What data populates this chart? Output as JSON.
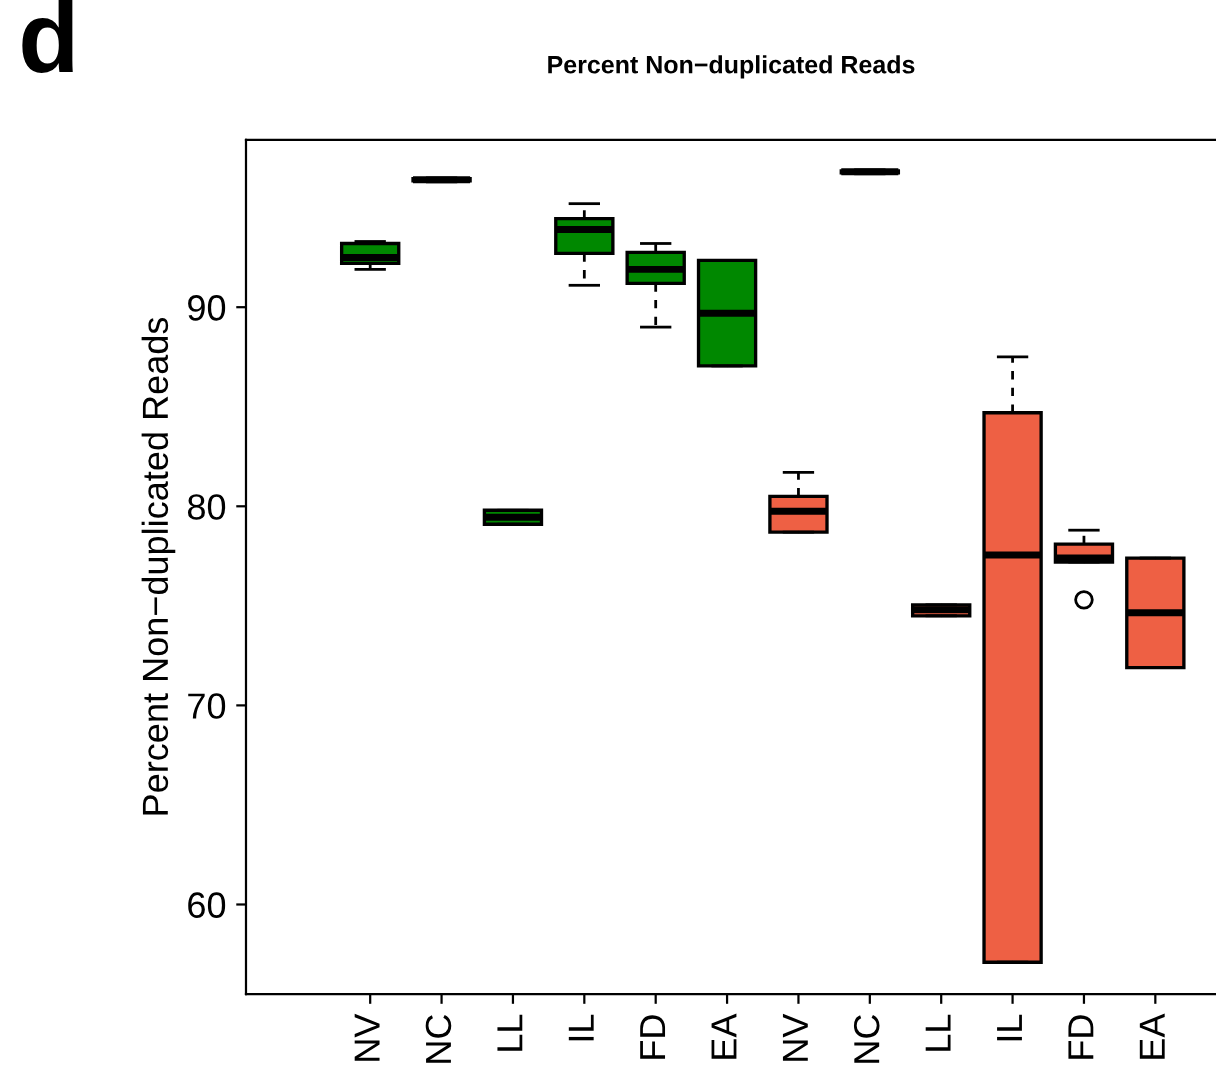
{
  "chart_data": {
    "type": "box",
    "title": "Percent Non−duplicated Reads",
    "ylabel": "Percent Non−duplicated Reads",
    "annotations": [
      "d"
    ],
    "categories": [
      "NV",
      "NC",
      "LL",
      "IL",
      "FD",
      "EA",
      "NV",
      "NC",
      "LL",
      "IL",
      "FD",
      "EA"
    ],
    "colors": [
      "#008800",
      "#008800",
      "#008800",
      "#008800",
      "#008800",
      "#008800",
      "#ee6044",
      "#ee6044",
      "#ee6044",
      "#ee6044",
      "#ee6044",
      "#ee6044"
    ],
    "boxes": [
      {
        "low": 91.9,
        "q1": 92.2,
        "median": 92.5,
        "q3": 93.2,
        "high": 93.3
      },
      {
        "low": 96.3,
        "q1": 96.35,
        "median": 96.4,
        "q3": 96.45,
        "high": 96.5
      },
      {
        "low": 79.1,
        "q1": 79.1,
        "median": 79.45,
        "q3": 79.8,
        "high": 79.8
      },
      {
        "low": 91.1,
        "q1": 92.7,
        "median": 93.9,
        "q3": 94.45,
        "high": 95.2
      },
      {
        "low": 89.0,
        "q1": 91.2,
        "median": 91.9,
        "q3": 92.75,
        "high": 93.2
      },
      {
        "low": 87.05,
        "q1": 87.05,
        "median": 89.7,
        "q3": 92.35,
        "high": 92.35
      },
      {
        "low": 78.7,
        "q1": 78.7,
        "median": 79.75,
        "q3": 80.5,
        "high": 81.7
      },
      {
        "low": 96.7,
        "q1": 96.75,
        "median": 96.8,
        "q3": 96.85,
        "high": 96.9
      },
      {
        "low": 74.5,
        "q1": 74.5,
        "median": 74.8,
        "q3": 75.05,
        "high": 75.05
      },
      {
        "low": 57.1,
        "q1": 57.1,
        "median": 77.55,
        "q3": 84.7,
        "high": 87.5
      },
      {
        "low": 77.2,
        "q1": 77.2,
        "median": 77.4,
        "q3": 78.1,
        "high": 78.8,
        "outliers": [
          75.3
        ]
      },
      {
        "low": 71.9,
        "q1": 71.9,
        "median": 74.65,
        "q3": 77.4,
        "high": 77.4
      }
    ],
    "ylim": [
      55.5,
      98.4
    ],
    "yticks": [
      60,
      70,
      80,
      90
    ],
    "grid": false,
    "legend": false
  }
}
